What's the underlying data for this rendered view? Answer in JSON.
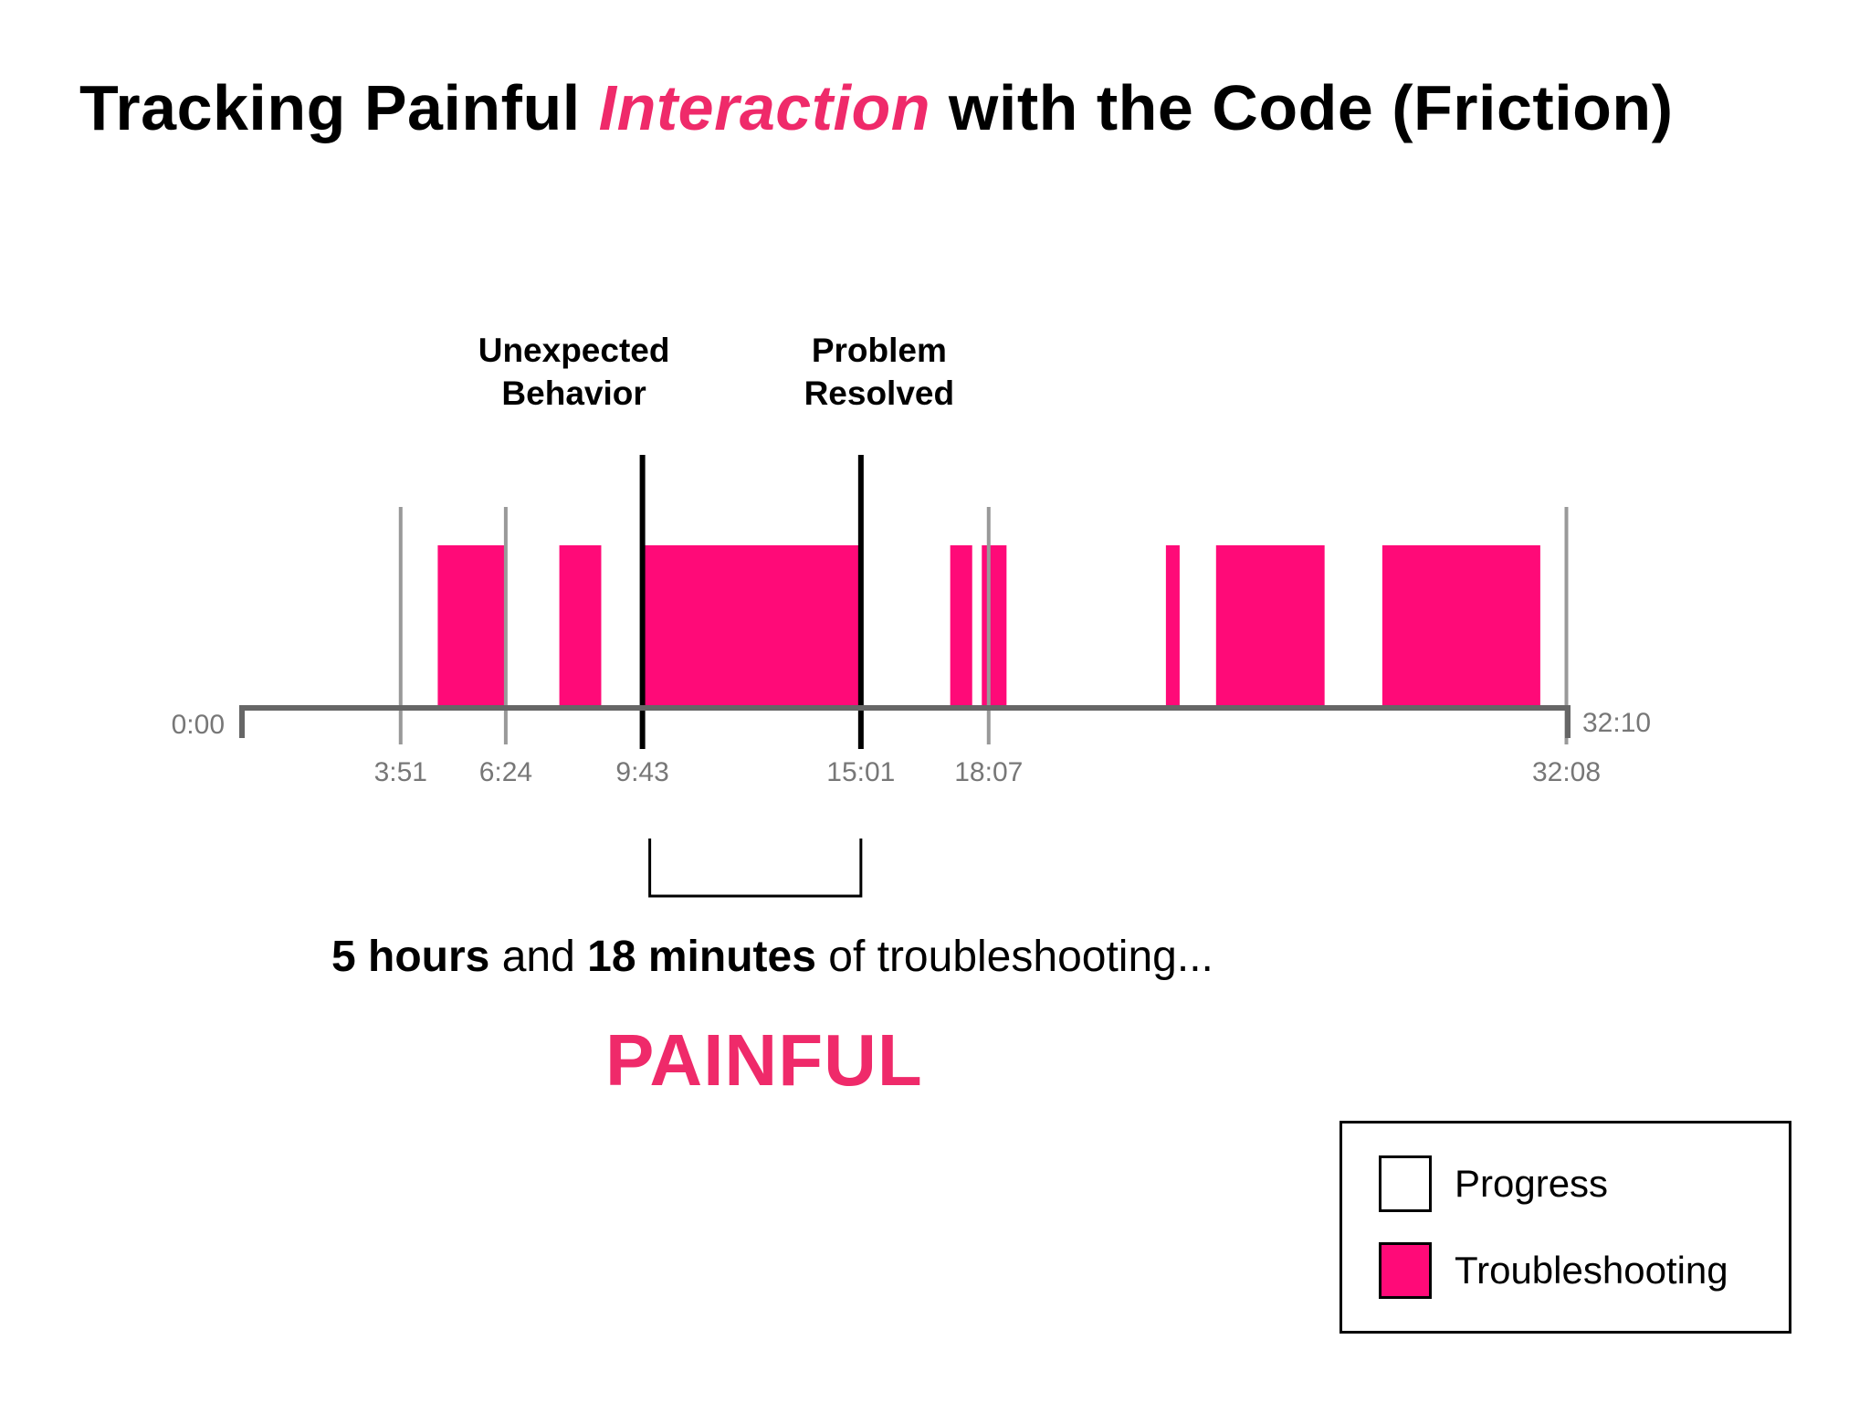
{
  "title": {
    "part1": "Tracking Painful ",
    "accent": "Interaction",
    "part2": " with the Code (Friction)"
  },
  "colors": {
    "troubleshooting": "#ff0a78",
    "progress": "#ffffff",
    "accent_text": "#ef2a6a",
    "axis": "#666666",
    "tick_gray": "#999999",
    "marker": "#000000"
  },
  "chart_data": {
    "type": "timeline",
    "title": "Tracking Painful Interaction with the Code (Friction)",
    "axis": {
      "start_label": "0:00",
      "end_label": "32:10",
      "start": 0,
      "end": 1930
    },
    "ticks": [
      {
        "label": "3:51",
        "value": 231
      },
      {
        "label": "6:24",
        "value": 384
      },
      {
        "label": "9:43",
        "value": 583
      },
      {
        "label": "15:01",
        "value": 901
      },
      {
        "label": "18:07",
        "value": 1087
      },
      {
        "label": "32:08",
        "value": 1928
      }
    ],
    "markers": [
      {
        "label_line1": "Unexpected",
        "label_line2": "Behavior",
        "value": 583
      },
      {
        "label_line1": "Problem",
        "label_line2": "Resolved",
        "value": 901
      }
    ],
    "series": [
      {
        "name": "Troubleshooting",
        "segments": [
          [
            285,
            384
          ],
          [
            462,
            523
          ],
          [
            583,
            901
          ],
          [
            1031,
            1063
          ],
          [
            1077,
            1113
          ],
          [
            1345,
            1365
          ],
          [
            1418,
            1576
          ],
          [
            1660,
            1890
          ]
        ]
      }
    ],
    "legend": [
      "Progress",
      "Troubleshooting"
    ],
    "legend_position": "bottom-right"
  },
  "summary": {
    "hours": "5 hours",
    "and": " and ",
    "minutes": "18 minutes",
    "rest": " of troubleshooting..."
  },
  "verdict": "PAINFUL",
  "legend": {
    "items": [
      {
        "label": "Progress",
        "color": "#ffffff"
      },
      {
        "label": "Troubleshooting",
        "color": "#ff0a78"
      }
    ]
  }
}
